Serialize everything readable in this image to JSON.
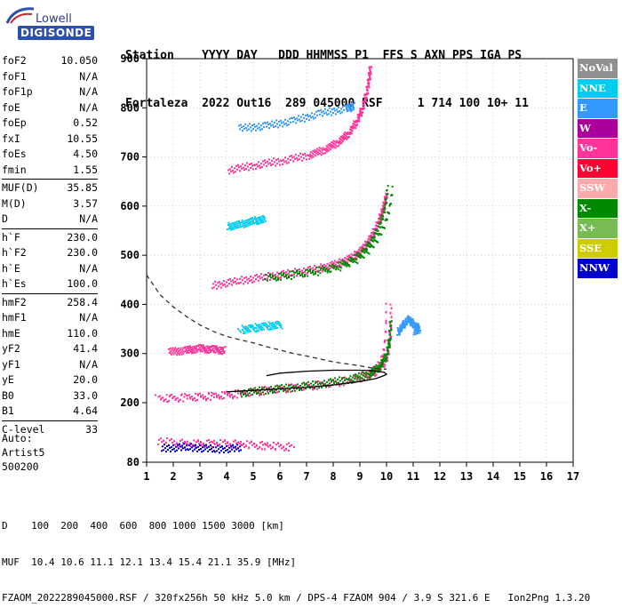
{
  "logo": {
    "top": "Lowell",
    "bottom": "DIGISONDE"
  },
  "header": {
    "line1": "Station    YYYY DAY   DDD HHMMSS P1  FFS S AXN PPS IGA PS",
    "line2": "Fortaleza  2022 Out16  289 045000 RSF     1 714 100 10+ 11"
  },
  "params": {
    "group1": [
      {
        "label": "foF2",
        "value": "10.050"
      },
      {
        "label": "foF1",
        "value": "N/A"
      },
      {
        "label": "foF1p",
        "value": "N/A"
      },
      {
        "label": "foE",
        "value": "N/A"
      },
      {
        "label": "foEp",
        "value": "0.52"
      },
      {
        "label": "fxI",
        "value": "10.55"
      },
      {
        "label": "foEs",
        "value": "4.50"
      },
      {
        "label": "fmin",
        "value": "1.55"
      }
    ],
    "group2": [
      {
        "label": "MUF(D)",
        "value": "35.85"
      },
      {
        "label": "M(D)",
        "value": "3.57"
      },
      {
        "label": "D",
        "value": "N/A"
      }
    ],
    "group3": [
      {
        "label": "h`F",
        "value": "230.0"
      },
      {
        "label": "h`F2",
        "value": "230.0"
      },
      {
        "label": "h`E",
        "value": "N/A"
      },
      {
        "label": "h`Es",
        "value": "100.0"
      }
    ],
    "group4": [
      {
        "label": "hmF2",
        "value": "258.4"
      },
      {
        "label": "hmF1",
        "value": "N/A"
      },
      {
        "label": "hmE",
        "value": "110.0"
      },
      {
        "label": "yF2",
        "value": "41.4"
      },
      {
        "label": "yF1",
        "value": "N/A"
      },
      {
        "label": "yE",
        "value": "20.0"
      },
      {
        "label": "B0",
        "value": "33.0"
      },
      {
        "label": "B1",
        "value": "4.64"
      }
    ],
    "group5": [
      {
        "label": "C-level",
        "value": "33"
      }
    ]
  },
  "auto": {
    "line1": "Auto:",
    "line2": "Artist5",
    "line3": "500200"
  },
  "legend": [
    {
      "label": "NoVal",
      "color": "#909090"
    },
    {
      "label": "NNE",
      "color": "#00ccee"
    },
    {
      "label": "E",
      "color": "#3399ff"
    },
    {
      "label": "W",
      "color": "#aa0099"
    },
    {
      "label": "Vo-",
      "color": "#ff3399"
    },
    {
      "label": "Vo+",
      "color": "#ff0033"
    },
    {
      "label": "SSW",
      "color": "#ffaaaa"
    },
    {
      "label": "X-",
      "color": "#008800"
    },
    {
      "label": "X+",
      "color": "#77bb55"
    },
    {
      "label": "SSE",
      "color": "#cccc00"
    },
    {
      "label": "NNW",
      "color": "#0000cc"
    }
  ],
  "chart_data": {
    "type": "scatter",
    "xlim": [
      1,
      17
    ],
    "ylim": [
      80,
      900
    ],
    "x_ticks": [
      "1",
      "2",
      "3",
      "4",
      "5",
      "6",
      "7",
      "8",
      "9",
      "10",
      "11",
      "12",
      "13",
      "14",
      "15",
      "16",
      "17"
    ],
    "y_ticks": [
      "80",
      "200",
      "300",
      "400",
      "500",
      "600",
      "700",
      "800",
      "900"
    ],
    "grid": true,
    "series": [
      {
        "kind": "dashed",
        "color": "#333333",
        "points": [
          [
            1.0,
            460
          ],
          [
            1.5,
            420
          ],
          [
            2.0,
            395
          ],
          [
            2.5,
            375
          ],
          [
            3.0,
            358
          ],
          [
            3.5,
            345
          ],
          [
            4.0,
            335
          ],
          [
            4.5,
            328
          ],
          [
            5.0,
            322
          ],
          [
            5.5,
            314
          ],
          [
            6.0,
            307
          ],
          [
            6.5,
            300
          ],
          [
            7.0,
            295
          ],
          [
            7.5,
            289
          ],
          [
            8.0,
            283
          ],
          [
            8.5,
            279
          ],
          [
            9.0,
            275
          ],
          [
            9.5,
            270
          ],
          [
            10.0,
            268
          ]
        ]
      },
      {
        "kind": "solid",
        "color": "#000000",
        "points": [
          [
            4.0,
            222
          ],
          [
            5.0,
            225
          ],
          [
            6.0,
            228
          ],
          [
            7.0,
            231
          ],
          [
            8.0,
            236
          ],
          [
            9.0,
            243
          ],
          [
            9.6,
            249
          ],
          [
            9.9,
            255
          ],
          [
            10.0,
            258
          ],
          [
            9.9,
            262
          ],
          [
            9.5,
            265
          ],
          [
            9.0,
            266
          ],
          [
            8.0,
            266
          ],
          [
            7.0,
            264
          ],
          [
            6.0,
            260
          ],
          [
            5.5,
            255
          ]
        ]
      }
    ],
    "echo_traces": [
      {
        "color": "#ff3399",
        "points": [
          [
            1.4,
            210
          ],
          [
            2.5,
            212
          ],
          [
            3.5,
            215
          ],
          [
            4.5,
            220
          ],
          [
            5.5,
            227
          ],
          [
            6.5,
            232
          ],
          [
            7.5,
            238
          ],
          [
            8.5,
            246
          ],
          [
            9.2,
            256
          ],
          [
            9.6,
            268
          ],
          [
            9.9,
            290
          ],
          [
            10.0,
            320
          ],
          [
            10.05,
            360
          ],
          [
            10.05,
            400
          ]
        ]
      },
      {
        "color": "#008800",
        "points": [
          [
            4.5,
            221
          ],
          [
            5.5,
            228
          ],
          [
            6.5,
            233
          ],
          [
            7.5,
            240
          ],
          [
            8.5,
            249
          ],
          [
            9.3,
            260
          ],
          [
            9.7,
            276
          ],
          [
            9.95,
            300
          ],
          [
            10.05,
            330
          ],
          [
            10.1,
            370
          ]
        ]
      },
      {
        "color": "#ff3399",
        "points": [
          [
            3.5,
            440
          ],
          [
            4.5,
            450
          ],
          [
            5.5,
            458
          ],
          [
            6.5,
            466
          ],
          [
            7.5,
            475
          ],
          [
            8.2,
            485
          ],
          [
            8.8,
            500
          ],
          [
            9.2,
            520
          ],
          [
            9.5,
            545
          ],
          [
            9.75,
            575
          ],
          [
            9.9,
            600
          ],
          [
            10.0,
            625
          ]
        ]
      },
      {
        "color": "#008800",
        "points": [
          [
            5.5,
            455
          ],
          [
            6.5,
            462
          ],
          [
            7.5,
            470
          ],
          [
            8.3,
            480
          ],
          [
            8.9,
            496
          ],
          [
            9.3,
            516
          ],
          [
            9.6,
            540
          ],
          [
            9.85,
            570
          ],
          [
            10.0,
            600
          ],
          [
            10.1,
            640
          ]
        ]
      },
      {
        "color": "#ff3399",
        "points": [
          [
            4.0,
            675
          ],
          [
            5.0,
            685
          ],
          [
            6.0,
            694
          ],
          [
            7.0,
            705
          ],
          [
            7.6,
            717
          ],
          [
            8.1,
            732
          ],
          [
            8.5,
            750
          ],
          [
            8.8,
            775
          ],
          [
            9.0,
            800
          ],
          [
            9.15,
            830
          ],
          [
            9.25,
            860
          ],
          [
            9.3,
            885
          ]
        ]
      },
      {
        "color": "#3399ff",
        "points": [
          [
            10.4,
            345
          ],
          [
            10.6,
            360
          ],
          [
            10.8,
            372
          ],
          [
            11.0,
            360
          ],
          [
            11.2,
            352
          ],
          [
            11.0,
            345
          ]
        ]
      },
      {
        "color": "#ff3399",
        "points": [
          [
            1.9,
            305
          ],
          [
            2.5,
            308
          ],
          [
            3.0,
            312
          ],
          [
            3.5,
            310
          ],
          [
            4.0,
            308
          ]
        ]
      },
      {
        "color": "#00ccee",
        "points": [
          [
            4.5,
            350
          ],
          [
            5.0,
            354
          ],
          [
            5.5,
            358
          ],
          [
            6.0,
            360
          ]
        ]
      },
      {
        "color": "#00ccee",
        "points": [
          [
            4.0,
            560
          ],
          [
            4.5,
            565
          ],
          [
            5.0,
            572
          ],
          [
            5.4,
            575
          ]
        ]
      },
      {
        "color": "#3399ff",
        "points": [
          [
            4.5,
            760
          ],
          [
            5.5,
            765
          ],
          [
            6.5,
            775
          ],
          [
            7.5,
            790
          ],
          [
            8.5,
            800
          ],
          [
            8.8,
            805
          ]
        ]
      },
      {
        "color": "#ff3399",
        "points": [
          [
            1.5,
            125
          ],
          [
            2.5,
            118
          ],
          [
            3.5,
            120
          ],
          [
            4.5,
            118
          ],
          [
            5.5,
            115
          ],
          [
            6.5,
            112
          ]
        ]
      },
      {
        "color": "#0000cc",
        "points": [
          [
            1.5,
            110
          ],
          [
            2.5,
            112
          ],
          [
            3.5,
            108
          ],
          [
            4.5,
            110
          ]
        ]
      }
    ]
  },
  "footer": {
    "line1": "D    100  200  400  600  800 1000 1500 3000 [km]",
    "line2": "MUF  10.4 10.6 11.1 12.1 13.4 15.4 21.1 35.9 [MHz]",
    "line3": "FZAOM_2022289045000.RSF / 320fx256h 50 kHz 5.0 km / DPS-4 FZAOM 904 / 3.9 S 321.6 E   Ion2Png 1.3.20"
  }
}
